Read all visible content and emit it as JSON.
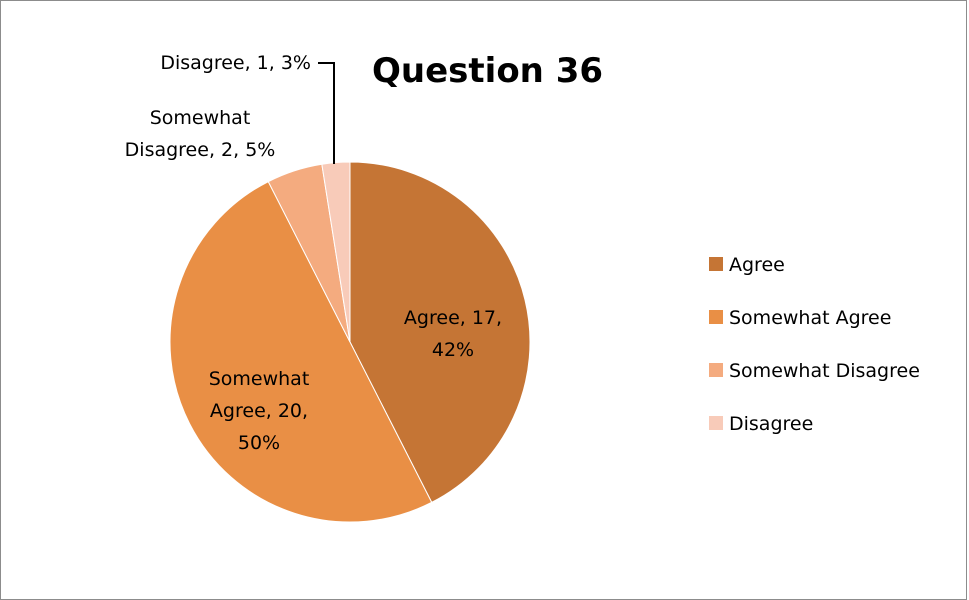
{
  "chart_data": {
    "type": "pie",
    "title": "Question 36",
    "categories": [
      "Agree",
      "Somewhat Agree",
      "Somewhat Disagree",
      "Disagree"
    ],
    "values": [
      17,
      20,
      2,
      1
    ],
    "percents": [
      "42%",
      "50%",
      "5%",
      "3%"
    ],
    "colors": [
      "#c57535",
      "#e98f45",
      "#f4ab7f",
      "#f8cbb9"
    ],
    "data_labels": [
      [
        "Agree, 17,",
        "42%"
      ],
      [
        "Somewhat",
        "Agree, 20,",
        "50%"
      ],
      [
        "Somewhat",
        "Disagree, 2, 5%"
      ],
      [
        "Disagree, 1, 3%"
      ]
    ],
    "legend": [
      "Agree",
      "Somewhat Agree",
      "Somewhat Disagree",
      "Disagree"
    ],
    "legend_position": "right"
  }
}
